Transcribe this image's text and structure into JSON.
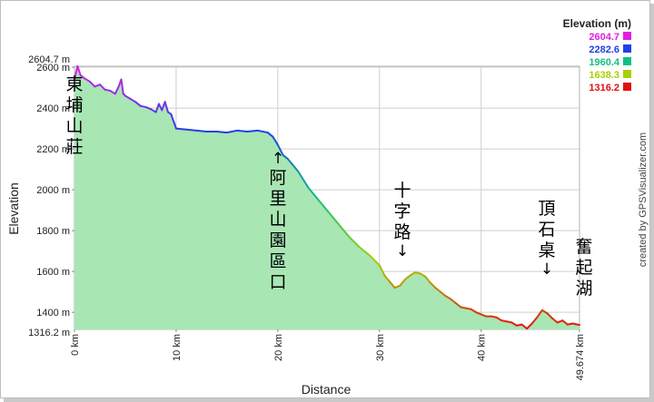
{
  "chart_data": {
    "type": "area",
    "xlabel": "Distance",
    "ylabel": "Elevation",
    "x_unit": "km",
    "xlim": [
      0,
      49.674
    ],
    "ylim": [
      1316.2,
      2604.7
    ],
    "grid": true,
    "x_ticks": [
      {
        "value": 0,
        "label": "0 km"
      },
      {
        "value": 10,
        "label": "10 km"
      },
      {
        "value": 20,
        "label": "20 km"
      },
      {
        "value": 30,
        "label": "30 km"
      },
      {
        "value": 40,
        "label": "40 km"
      },
      {
        "value": 49.674,
        "label": "49.674 km"
      }
    ],
    "y_ticks": [
      {
        "value": 1316.2,
        "label": "1316.2 m"
      },
      {
        "value": 1400,
        "label": "1400 m"
      },
      {
        "value": 1600,
        "label": "1600 m"
      },
      {
        "value": 1800,
        "label": "1800 m"
      },
      {
        "value": 2000,
        "label": "2000 m"
      },
      {
        "value": 2200,
        "label": "2200 m"
      },
      {
        "value": 2400,
        "label": "2400 m"
      },
      {
        "value": 2600,
        "label": "2600 m"
      },
      {
        "value": 2604.7,
        "label": "2604.7 m"
      }
    ],
    "series": [
      {
        "x": [
          0,
          0.3,
          0.6,
          1.0,
          1.5,
          2.0,
          2.5,
          3.0,
          3.5,
          4.0,
          4.3,
          4.6,
          4.8,
          5.0,
          5.5,
          6.0,
          6.5,
          7.0,
          7.5,
          8.0,
          8.3,
          8.6,
          8.9,
          9.2,
          9.5,
          10.0,
          11.0,
          12.0,
          13.0,
          14.0,
          15.0,
          16.0,
          17.0,
          18.0,
          19.0,
          19.5,
          20.0,
          20.5,
          21.0,
          21.5,
          22.0,
          23.0,
          24.0,
          25.0,
          26.0,
          27.0,
          28.0,
          29.0,
          30.0,
          30.5,
          31.0,
          31.5,
          32.0,
          32.5,
          33.0,
          33.5,
          34.0,
          34.5,
          35.0,
          35.5,
          36.0,
          36.5,
          37.0,
          37.5,
          38.0,
          38.5,
          39.0,
          39.5,
          40.0,
          40.5,
          41.0,
          41.5,
          42.0,
          42.5,
          43.0,
          43.5,
          44.0,
          44.5,
          45.0,
          45.5,
          46.0,
          46.5,
          47.0,
          47.5,
          48.0,
          48.5,
          49.0,
          49.674
        ],
        "y": [
          2540,
          2604.7,
          2560,
          2545,
          2530,
          2505,
          2515,
          2490,
          2485,
          2470,
          2500,
          2540,
          2470,
          2460,
          2445,
          2430,
          2410,
          2405,
          2395,
          2380,
          2420,
          2390,
          2430,
          2380,
          2370,
          2300,
          2295,
          2290,
          2285,
          2285,
          2280,
          2290,
          2285,
          2290,
          2280,
          2260,
          2220,
          2170,
          2150,
          2120,
          2090,
          2010,
          1950,
          1890,
          1830,
          1770,
          1720,
          1680,
          1630,
          1580,
          1550,
          1520,
          1530,
          1560,
          1580,
          1595,
          1590,
          1575,
          1545,
          1520,
          1500,
          1480,
          1465,
          1445,
          1425,
          1420,
          1415,
          1400,
          1390,
          1380,
          1380,
          1375,
          1360,
          1355,
          1350,
          1335,
          1340,
          1320,
          1345,
          1375,
          1410,
          1395,
          1370,
          1350,
          1360,
          1340,
          1345,
          1338
        ]
      }
    ],
    "color_legend": {
      "title": "Elevation (m)",
      "entries": [
        {
          "value": "2604.7",
          "color": "#e020e0"
        },
        {
          "value": "2282.6",
          "color": "#2040e8"
        },
        {
          "value": "1960.4",
          "color": "#10c080"
        },
        {
          "value": "1638.3",
          "color": "#a8d000"
        },
        {
          "value": "1316.2",
          "color": "#e01010"
        }
      ]
    },
    "annotations": [
      {
        "text": "東埔山莊",
        "x": 0.0,
        "arrow": ""
      },
      {
        "text": "阿里山園區口",
        "x": 20.1,
        "arrow": "↑"
      },
      {
        "text": "十字路",
        "x": 32.0,
        "arrow": "↓"
      },
      {
        "text": "頂石桌",
        "x": 46.5,
        "arrow": "↓"
      },
      {
        "text": "奮起湖",
        "x": 49.674,
        "arrow": ""
      }
    ]
  },
  "credit": "created by GPSVisualizer.com",
  "fill_color": "#a8e6b4"
}
